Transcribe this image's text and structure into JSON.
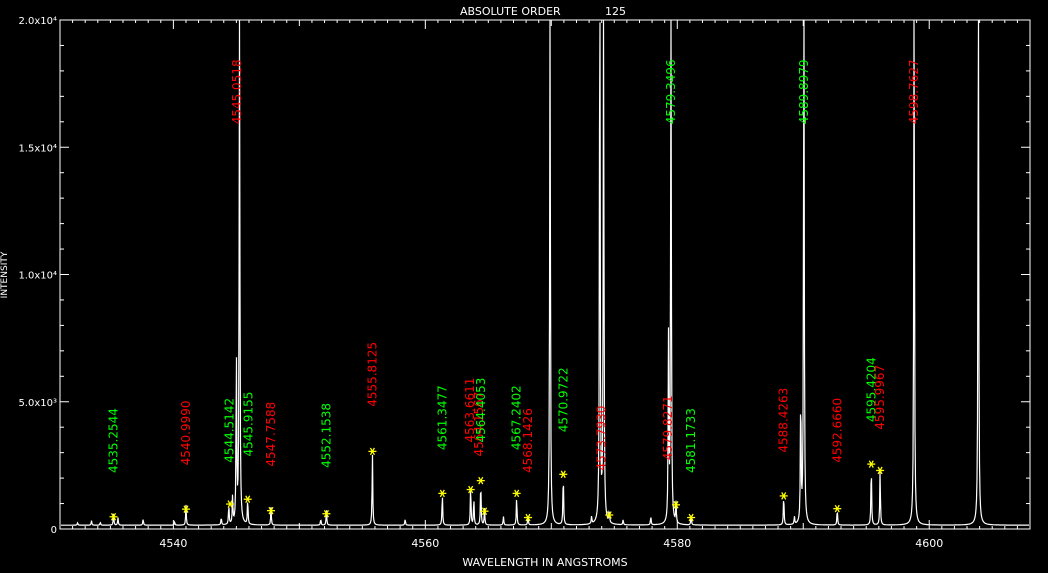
{
  "chart_data": {
    "type": "line",
    "title": "ABSOLUTE ORDER",
    "order": "125",
    "xlabel": "WAVELENGTH IN ANGSTROMS",
    "ylabel": "INTENSITY",
    "xlim": [
      4531,
      4608
    ],
    "ylim": [
      0,
      20000
    ],
    "x_ticks": [
      {
        "value": 4540,
        "label": "4540"
      },
      {
        "value": 4560,
        "label": "4560"
      },
      {
        "value": 4580,
        "label": "4580"
      },
      {
        "value": 4600,
        "label": "4600"
      }
    ],
    "y_ticks": [
      {
        "value": 0,
        "label": "0"
      },
      {
        "value": 5000,
        "label": "5.0x10³"
      },
      {
        "value": 10000,
        "label": "1.0x10⁴"
      },
      {
        "value": 15000,
        "label": "1.5x10⁴"
      },
      {
        "value": 20000,
        "label": "2.0x10⁴"
      }
    ],
    "colors": {
      "background": "#000000",
      "axes": "#ffffff",
      "spectrum": "#ffffff",
      "marker": "#ffff00",
      "green_label": "#00ff00",
      "red_label": "#ff0000"
    },
    "baseline": 150,
    "peaks": [
      {
        "x": 4532.4,
        "h": 100
      },
      {
        "x": 4533.5,
        "h": 180
      },
      {
        "x": 4534.2,
        "h": 120
      },
      {
        "x": 4535.25,
        "h": 450
      },
      {
        "x": 4535.6,
        "h": 300
      },
      {
        "x": 4537.6,
        "h": 250
      },
      {
        "x": 4540.1,
        "h": 130
      },
      {
        "x": 4541.0,
        "h": 800
      },
      {
        "x": 4543.8,
        "h": 300
      },
      {
        "x": 4544.4,
        "h": 800
      },
      {
        "x": 4544.7,
        "h": 1100
      },
      {
        "x": 4545.0,
        "h": 7000
      },
      {
        "x": 4545.25,
        "h": 25000
      },
      {
        "x": 4545.9,
        "h": 1050
      },
      {
        "x": 4547.75,
        "h": 700
      },
      {
        "x": 4551.7,
        "h": 250
      },
      {
        "x": 4552.15,
        "h": 600
      },
      {
        "x": 4555.8,
        "h": 2900
      },
      {
        "x": 4558.4,
        "h": 250
      },
      {
        "x": 4561.35,
        "h": 1300
      },
      {
        "x": 4563.6,
        "h": 1600
      },
      {
        "x": 4563.85,
        "h": 1100
      },
      {
        "x": 4564.4,
        "h": 1800
      },
      {
        "x": 4564.7,
        "h": 650
      },
      {
        "x": 4566.2,
        "h": 350
      },
      {
        "x": 4567.25,
        "h": 1150
      },
      {
        "x": 4568.15,
        "h": 350
      },
      {
        "x": 4569.9,
        "h": 25000
      },
      {
        "x": 4570.95,
        "h": 2100
      },
      {
        "x": 4573.2,
        "h": 300
      },
      {
        "x": 4573.85,
        "h": 25000
      },
      {
        "x": 4574.15,
        "h": 25000
      },
      {
        "x": 4574.6,
        "h": 500
      },
      {
        "x": 4575.7,
        "h": 200
      },
      {
        "x": 4577.9,
        "h": 350
      },
      {
        "x": 4579.3,
        "h": 7300
      },
      {
        "x": 4579.5,
        "h": 25000
      },
      {
        "x": 4579.9,
        "h": 800
      },
      {
        "x": 4581.1,
        "h": 400
      },
      {
        "x": 4588.45,
        "h": 1250
      },
      {
        "x": 4589.3,
        "h": 300
      },
      {
        "x": 4589.8,
        "h": 5500
      },
      {
        "x": 4590.05,
        "h": 25000
      },
      {
        "x": 4592.7,
        "h": 650
      },
      {
        "x": 4595.4,
        "h": 2500
      },
      {
        "x": 4596.1,
        "h": 2200
      },
      {
        "x": 4598.8,
        "h": 25000
      },
      {
        "x": 4603.9,
        "h": 25000
      }
    ],
    "markers": [
      {
        "x": 4535.25,
        "y": 480
      },
      {
        "x": 4541.0,
        "y": 780
      },
      {
        "x": 4544.5,
        "y": 980
      },
      {
        "x": 4545.9,
        "y": 1170
      },
      {
        "x": 4547.75,
        "y": 720
      },
      {
        "x": 4552.15,
        "y": 600
      },
      {
        "x": 4555.8,
        "y": 3050
      },
      {
        "x": 4561.35,
        "y": 1400
      },
      {
        "x": 4563.6,
        "y": 1550
      },
      {
        "x": 4564.4,
        "y": 1900
      },
      {
        "x": 4564.7,
        "y": 700
      },
      {
        "x": 4567.25,
        "y": 1400
      },
      {
        "x": 4568.15,
        "y": 450
      },
      {
        "x": 4570.95,
        "y": 2150
      },
      {
        "x": 4574.6,
        "y": 550
      },
      {
        "x": 4579.9,
        "y": 950
      },
      {
        "x": 4581.1,
        "y": 450
      },
      {
        "x": 4588.45,
        "y": 1300
      },
      {
        "x": 4592.7,
        "y": 800
      },
      {
        "x": 4595.4,
        "y": 2550
      },
      {
        "x": 4596.1,
        "y": 2300
      }
    ],
    "annotations": [
      {
        "text": "4535.2544",
        "x": 4535.25,
        "y": 2200,
        "color": "green"
      },
      {
        "text": "4540.9990",
        "x": 4541.0,
        "y": 2500,
        "color": "red"
      },
      {
        "text": "4544.5142",
        "x": 4544.45,
        "y": 2600,
        "color": "green"
      },
      {
        "text": "4545.0518",
        "x": 4545.05,
        "y": 15900,
        "color": "red"
      },
      {
        "text": "4545.9155",
        "x": 4545.95,
        "y": 2850,
        "color": "green"
      },
      {
        "text": "4547.7588",
        "x": 4547.75,
        "y": 2450,
        "color": "red"
      },
      {
        "text": "4552.1538",
        "x": 4552.15,
        "y": 2400,
        "color": "green"
      },
      {
        "text": "4555.8125",
        "x": 4555.8,
        "y": 4800,
        "color": "red"
      },
      {
        "text": "4561.3477",
        "x": 4561.35,
        "y": 3100,
        "color": "green"
      },
      {
        "text": "4563.6611",
        "x": 4563.55,
        "y": 3400,
        "color": "red"
      },
      {
        "text": "4564.1567",
        "x": 4564.25,
        "y": 2850,
        "color": "red"
      },
      {
        "text": "4564.4053",
        "x": 4564.4,
        "y": 3400,
        "color": "green"
      },
      {
        "text": "4567.2402",
        "x": 4567.25,
        "y": 3100,
        "color": "green"
      },
      {
        "text": "4568.1426",
        "x": 4568.15,
        "y": 2200,
        "color": "red"
      },
      {
        "text": "4570.9722",
        "x": 4570.95,
        "y": 3800,
        "color": "green"
      },
      {
        "text": "4573.7930",
        "x": 4574.0,
        "y": 2300,
        "color": "red"
      },
      {
        "text": "4579.3496",
        "x": 4579.5,
        "y": 15900,
        "color": "green"
      },
      {
        "text": "4579.8271",
        "x": 4579.25,
        "y": 2700,
        "color": "red"
      },
      {
        "text": "4581.1733",
        "x": 4581.1,
        "y": 2200,
        "color": "green"
      },
      {
        "text": "4588.4263",
        "x": 4588.45,
        "y": 3000,
        "color": "red"
      },
      {
        "text": "4589.8979",
        "x": 4590.05,
        "y": 15900,
        "color": "green"
      },
      {
        "text": "4592.6660",
        "x": 4592.7,
        "y": 2600,
        "color": "red"
      },
      {
        "text": "4595.4204",
        "x": 4595.4,
        "y": 4200,
        "color": "green"
      },
      {
        "text": "4595.9967",
        "x": 4596.1,
        "y": 3900,
        "color": "red"
      },
      {
        "text": "4598.7627",
        "x": 4598.8,
        "y": 15900,
        "color": "red"
      }
    ]
  }
}
